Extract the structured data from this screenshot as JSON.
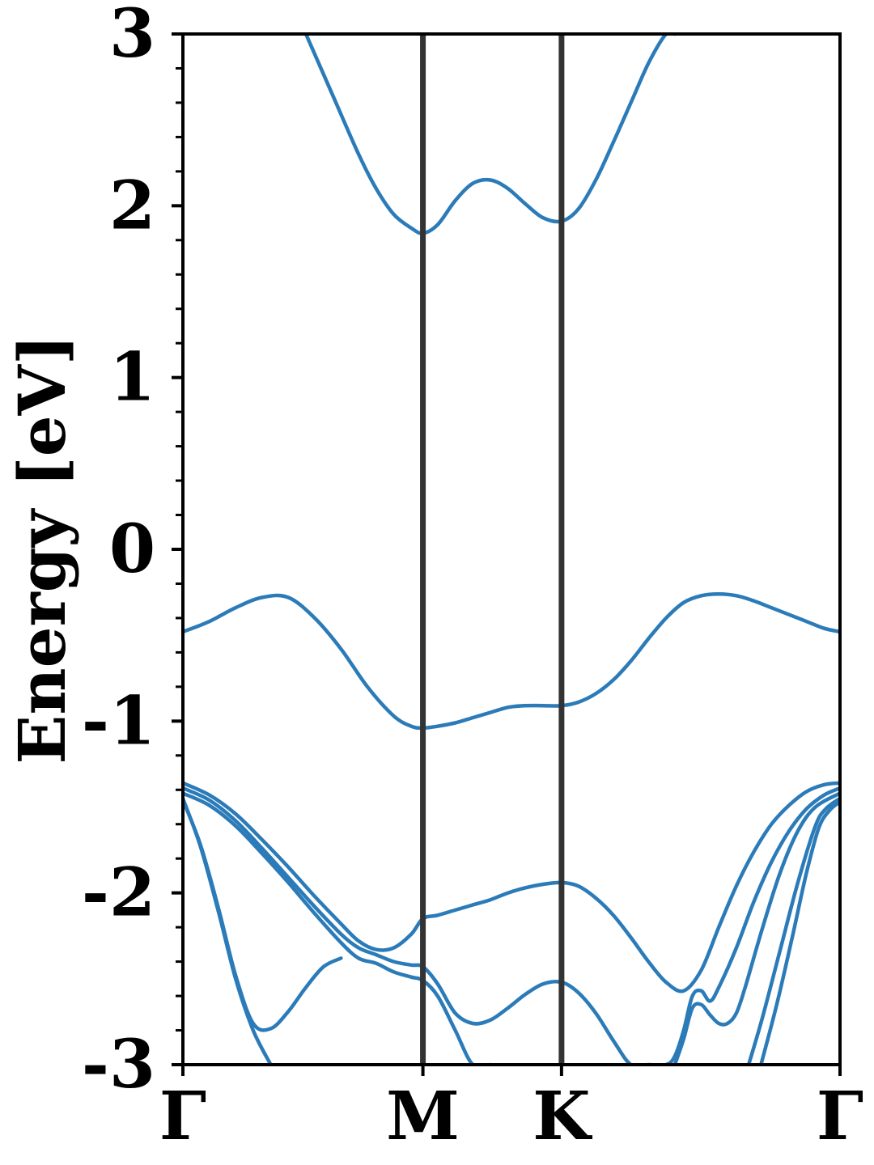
{
  "chart_data": {
    "type": "line",
    "ylabel": "Energy [eV]",
    "ylim": [
      -3,
      3
    ],
    "xlim": [
      0,
      3.74
    ],
    "y_ticks": [
      -3,
      -2,
      -1,
      0,
      1,
      2,
      3
    ],
    "y_tick_labels": [
      "-3",
      "-2",
      "-1",
      "0",
      "1",
      "2",
      "3"
    ],
    "y_minor_step": 0.2,
    "x_ticks": [
      0,
      1.366,
      2.155,
      3.74
    ],
    "x_tick_labels": [
      "Γ",
      "M",
      "K",
      "Γ"
    ],
    "high_symmetry_lines": [
      1.366,
      2.155
    ],
    "band_color": "#2b7bb9",
    "divider_color": "#333333",
    "grid": false,
    "series": [
      {
        "x": [
          0.7,
          0.85,
          1.0,
          1.1,
          1.2,
          1.3,
          1.366,
          1.45,
          1.55,
          1.65,
          1.75,
          1.85,
          1.95,
          2.05,
          2.155,
          2.25,
          2.35,
          2.45,
          2.55,
          2.65,
          2.75,
          2.8
        ],
        "values": [
          3.0,
          2.65,
          2.3,
          2.1,
          1.95,
          1.87,
          1.84,
          1.89,
          2.03,
          2.13,
          2.15,
          2.1,
          2.01,
          1.93,
          1.91,
          1.98,
          2.15,
          2.37,
          2.6,
          2.83,
          3.0,
          3.0
        ]
      },
      {
        "x": [
          0,
          0.15,
          0.3,
          0.45,
          0.6,
          0.75,
          0.9,
          1.05,
          1.2,
          1.3,
          1.366,
          1.45,
          1.55,
          1.65,
          1.75,
          1.85,
          1.95,
          2.05,
          2.155,
          2.25,
          2.35,
          2.45,
          2.55,
          2.65,
          2.75,
          2.85,
          2.95,
          3.05,
          3.15,
          3.25,
          3.35,
          3.45,
          3.55,
          3.65,
          3.74
        ],
        "values": [
          -0.48,
          -0.42,
          -0.34,
          -0.28,
          -0.28,
          -0.4,
          -0.58,
          -0.8,
          -0.97,
          -1.03,
          -1.04,
          -1.03,
          -1.01,
          -0.98,
          -0.95,
          -0.92,
          -0.91,
          -0.91,
          -0.91,
          -0.89,
          -0.84,
          -0.76,
          -0.65,
          -0.52,
          -0.4,
          -0.31,
          -0.27,
          -0.26,
          -0.27,
          -0.3,
          -0.34,
          -0.38,
          -0.42,
          -0.46,
          -0.48
        ]
      },
      {
        "x": [
          0,
          0.15,
          0.3,
          0.45,
          0.6,
          0.75,
          0.9,
          1.0,
          1.1,
          1.2,
          1.3,
          1.366,
          1.45,
          1.55,
          1.65,
          1.75,
          1.85,
          1.95,
          2.05,
          2.155,
          2.25,
          2.35,
          2.45,
          2.55,
          2.65,
          2.75,
          2.85,
          2.95,
          3.05,
          3.15,
          3.25,
          3.35,
          3.45,
          3.55,
          3.65,
          3.74
        ],
        "values": [
          -1.36,
          -1.43,
          -1.54,
          -1.69,
          -1.85,
          -2.02,
          -2.18,
          -2.28,
          -2.33,
          -2.32,
          -2.24,
          -2.15,
          -2.13,
          -2.1,
          -2.07,
          -2.04,
          -2.0,
          -1.97,
          -1.95,
          -1.94,
          -1.96,
          -2.03,
          -2.13,
          -2.26,
          -2.4,
          -2.52,
          -2.57,
          -2.45,
          -2.2,
          -1.96,
          -1.76,
          -1.6,
          -1.49,
          -1.41,
          -1.37,
          -1.36
        ]
      },
      {
        "x": [
          0,
          0.15,
          0.3,
          0.45,
          0.6,
          0.75,
          0.9,
          1.0,
          1.1,
          1.2,
          1.3,
          1.366,
          1.45,
          1.55,
          1.65,
          1.75,
          1.85,
          1.95,
          2.05,
          2.155,
          2.25,
          2.35,
          2.45,
          2.55,
          2.65,
          2.75,
          2.8,
          2.85,
          2.9,
          2.95,
          3.0,
          3.05,
          3.15,
          3.25,
          3.35,
          3.45,
          3.55,
          3.65,
          3.74
        ],
        "values": [
          -1.39,
          -1.46,
          -1.58,
          -1.74,
          -1.91,
          -2.08,
          -2.24,
          -2.32,
          -2.36,
          -2.4,
          -2.42,
          -2.43,
          -2.53,
          -2.7,
          -2.76,
          -2.74,
          -2.67,
          -2.59,
          -2.53,
          -2.52,
          -2.58,
          -2.7,
          -2.86,
          -3.0,
          -3.0,
          -3.0,
          -2.95,
          -2.8,
          -2.6,
          -2.57,
          -2.63,
          -2.55,
          -2.32,
          -2.05,
          -1.82,
          -1.64,
          -1.51,
          -1.43,
          -1.39
        ]
      },
      {
        "x": [
          0,
          0.15,
          0.3,
          0.45,
          0.6,
          0.75,
          0.9,
          1.0,
          1.1,
          1.2,
          1.3,
          1.366,
          1.45,
          1.55,
          1.65,
          1.75
        ],
        "values": [
          -1.42,
          -1.49,
          -1.61,
          -1.77,
          -1.94,
          -2.12,
          -2.29,
          -2.38,
          -2.41,
          -2.46,
          -2.49,
          -2.51,
          -2.6,
          -2.8,
          -3.0,
          -3.0
        ]
      },
      {
        "x": [
          2.8,
          2.85,
          2.9,
          2.95,
          3.0,
          3.05,
          3.1,
          3.15,
          3.2,
          3.3,
          3.4,
          3.5,
          3.6,
          3.74
        ],
        "values": [
          -3.0,
          -2.85,
          -2.67,
          -2.65,
          -2.71,
          -2.76,
          -2.76,
          -2.7,
          -2.55,
          -2.2,
          -1.88,
          -1.64,
          -1.5,
          -1.42
        ]
      },
      {
        "x": [
          0,
          0.1,
          0.2,
          0.3,
          0.4,
          0.5
        ],
        "values": [
          -1.45,
          -1.73,
          -2.1,
          -2.5,
          -2.8,
          -3.0
        ]
      },
      {
        "x": [
          0,
          0.1,
          0.2,
          0.3,
          0.4,
          0.5,
          0.6,
          0.7,
          0.8,
          0.9
        ],
        "values": [
          -1.46,
          -1.72,
          -2.08,
          -2.48,
          -2.76,
          -2.79,
          -2.69,
          -2.55,
          -2.43,
          -2.38
        ]
      },
      {
        "x": [
          3.22,
          3.3,
          3.4,
          3.5,
          3.6,
          3.66,
          3.74
        ],
        "values": [
          -3.0,
          -2.72,
          -2.33,
          -1.94,
          -1.61,
          -1.51,
          -1.45
        ]
      },
      {
        "x": [
          3.29,
          3.38,
          3.47,
          3.55,
          3.62,
          3.68,
          3.74
        ],
        "values": [
          -3.0,
          -2.65,
          -2.25,
          -1.88,
          -1.62,
          -1.52,
          -1.47
        ]
      }
    ]
  }
}
